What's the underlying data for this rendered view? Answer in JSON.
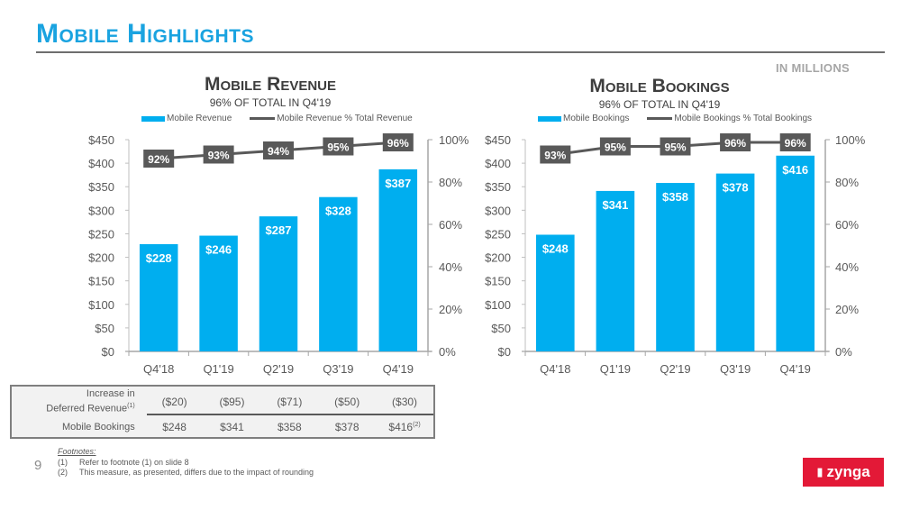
{
  "page": {
    "title": "Mobile Highlights",
    "units_note": "IN MILLIONS",
    "page_number": "9"
  },
  "legend": {
    "revenue_bar": "Mobile Revenue",
    "revenue_line": "Mobile Revenue % Total Revenue",
    "bookings_bar": "Mobile Bookings",
    "bookings_line": "Mobile Bookings % Total Bookings"
  },
  "chart_data": [
    {
      "type": "bar",
      "title": "Mobile Revenue",
      "subtitle": "96% OF TOTAL IN Q4'19",
      "categories": [
        "Q4'18",
        "Q1'19",
        "Q2'19",
        "Q3'19",
        "Q4'19"
      ],
      "series": [
        {
          "name": "Mobile Revenue",
          "type": "bar",
          "axis": "left",
          "color": "#00aeef",
          "values": [
            228,
            246,
            287,
            328,
            387
          ],
          "labels": [
            "$228",
            "$246",
            "$287",
            "$328",
            "$387"
          ]
        },
        {
          "name": "Mobile Revenue % Total Revenue",
          "type": "line",
          "axis": "right",
          "color": "#595959",
          "values": [
            92,
            93,
            94,
            95,
            96
          ],
          "labels": [
            "92%",
            "93%",
            "94%",
            "95%",
            "96%"
          ]
        }
      ],
      "ylim": [
        0,
        450
      ],
      "yticks": [
        0,
        50,
        100,
        150,
        200,
        250,
        300,
        350,
        400,
        450
      ],
      "ytick_labels": [
        "$0",
        "$50",
        "$100",
        "$150",
        "$200",
        "$250",
        "$300",
        "$350",
        "$400",
        "$450"
      ],
      "y2lim": [
        0,
        100
      ],
      "y2ticks": [
        0,
        20,
        40,
        60,
        80,
        100
      ],
      "y2tick_labels": [
        "0%",
        "20%",
        "40%",
        "60%",
        "80%",
        "100%"
      ],
      "legend_position": "top",
      "grid": false
    },
    {
      "type": "bar",
      "title": "Mobile Bookings",
      "subtitle": "96% OF TOTAL IN Q4'19",
      "categories": [
        "Q4'18",
        "Q1'19",
        "Q2'19",
        "Q3'19",
        "Q4'19"
      ],
      "series": [
        {
          "name": "Mobile Bookings",
          "type": "bar",
          "axis": "left",
          "color": "#00aeef",
          "values": [
            248,
            341,
            358,
            378,
            416
          ],
          "labels": [
            "$248",
            "$341",
            "$358",
            "$378",
            "$416"
          ]
        },
        {
          "name": "Mobile Bookings % Total Bookings",
          "type": "line",
          "axis": "right",
          "color": "#595959",
          "values": [
            93,
            95,
            95,
            96,
            96
          ],
          "labels": [
            "93%",
            "95%",
            "95%",
            "96%",
            "96%"
          ]
        }
      ],
      "ylim": [
        0,
        450
      ],
      "yticks": [
        0,
        50,
        100,
        150,
        200,
        250,
        300,
        350,
        400,
        450
      ],
      "ytick_labels": [
        "$0",
        "$50",
        "$100",
        "$150",
        "$200",
        "$250",
        "$300",
        "$350",
        "$400",
        "$450"
      ],
      "y2lim": [
        0,
        100
      ],
      "y2ticks": [
        0,
        20,
        40,
        60,
        80,
        100
      ],
      "y2tick_labels": [
        "0%",
        "20%",
        "40%",
        "60%",
        "80%",
        "100%"
      ],
      "legend_position": "top",
      "grid": false
    }
  ],
  "table": {
    "rows": [
      {
        "label": "Increase in Deferred Revenue",
        "label_line1": "Increase in",
        "label_line2": "Deferred Revenue",
        "label_sup": "(1)",
        "values": [
          "($20)",
          "($95)",
          "($71)",
          "($50)",
          "($30)"
        ]
      },
      {
        "label": "Mobile Bookings",
        "values": [
          "$248",
          "$341",
          "$358",
          "$378",
          "$416"
        ],
        "last_sup": "(2)"
      }
    ]
  },
  "footnotes": {
    "heading": "Footnotes:",
    "items": [
      {
        "num": "(1)",
        "text": "Refer to footnote (1) on slide 8"
      },
      {
        "num": "(2)",
        "text": "This measure, as presented, differs due to the impact of rounding"
      }
    ]
  },
  "logo": {
    "text": "zynga",
    "icon": "dog-icon",
    "color": "#e31937"
  },
  "colors": {
    "accent": "#1aa3e0",
    "bar": "#00aeef",
    "line": "#595959"
  }
}
